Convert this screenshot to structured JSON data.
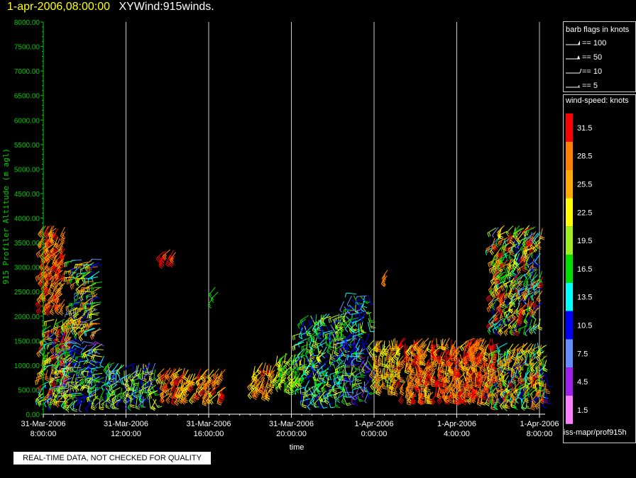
{
  "header": {
    "date": "1-apr-2006,08:00:00",
    "product": "XYWind:915winds."
  },
  "chart_data": {
    "type": "wind-barb time-height",
    "ylabel": "915 Profiler Altitude (m agl)",
    "xlabel": "time",
    "ylim": [
      0,
      8000
    ],
    "yticks": [
      "0.00",
      "500.00",
      "1000.00",
      "1500.00",
      "2000.00",
      "2500.00",
      "3000.00",
      "3500.00",
      "4000.00",
      "4500.00",
      "5000.00",
      "5500.00",
      "6000.00",
      "6500.00",
      "7000.00",
      "7500.00",
      "8000.00"
    ],
    "xticks": [
      {
        "date": "31-Mar-2006",
        "time": "8:00:00",
        "hour": 0
      },
      {
        "date": "31-Mar-2006",
        "time": "12:00:00",
        "hour": 4
      },
      {
        "date": "31-Mar-2006",
        "time": "16:00:00",
        "hour": 8
      },
      {
        "date": "31-Mar-2006",
        "time": "20:00:00",
        "hour": 12
      },
      {
        "date": "1-Apr-2006",
        "time": "0:00:00",
        "hour": 16
      },
      {
        "date": "1-Apr-2006",
        "time": "4:00:00",
        "hour": 20
      },
      {
        "date": "1-Apr-2006",
        "time": "8:00:00",
        "hour": 24
      }
    ],
    "xlim_hours": [
      0,
      24
    ],
    "grid": "vertical lines at each 4-hour tick",
    "wind_clusters": [
      {
        "t0": 0.0,
        "t1": 1.1,
        "h0": 2200,
        "h1": 3900,
        "s0": 24,
        "s1": 33,
        "dir": [
          200,
          240
        ]
      },
      {
        "t0": 0.0,
        "t1": 1.4,
        "h0": 300,
        "h1": 2000,
        "s0": 8,
        "s1": 33,
        "dir": [
          180,
          260
        ]
      },
      {
        "t0": 1.5,
        "t1": 2.9,
        "h0": 1700,
        "h1": 3200,
        "s0": 7,
        "s1": 30,
        "dir": [
          220,
          280
        ]
      },
      {
        "t0": 1.0,
        "t1": 3.0,
        "h0": 250,
        "h1": 1500,
        "s0": 4,
        "s1": 24,
        "dir": [
          180,
          300
        ]
      },
      {
        "t0": 3.0,
        "t1": 5.6,
        "h0": 300,
        "h1": 1100,
        "s0": 6,
        "s1": 24,
        "dir": [
          150,
          250
        ]
      },
      {
        "t0": 5.8,
        "t1": 6.5,
        "h0": 3200,
        "h1": 3400,
        "s0": 29,
        "s1": 33,
        "dir": [
          200,
          230
        ]
      },
      {
        "t0": 5.8,
        "t1": 8.9,
        "h0": 400,
        "h1": 1000,
        "s0": 22,
        "s1": 32,
        "dir": [
          190,
          240
        ]
      },
      {
        "t0": 8.2,
        "t1": 8.6,
        "h0": 2350,
        "h1": 2650,
        "s0": 15,
        "s1": 18,
        "dir": [
          210,
          240
        ]
      },
      {
        "t0": 10.2,
        "t1": 11.3,
        "h0": 500,
        "h1": 1100,
        "s0": 22,
        "s1": 31,
        "dir": [
          180,
          230
        ]
      },
      {
        "t0": 11.3,
        "t1": 12.6,
        "h0": 600,
        "h1": 1300,
        "s0": 16,
        "s1": 24,
        "dir": [
          170,
          240
        ]
      },
      {
        "t0": 12.5,
        "t1": 14.6,
        "h0": 300,
        "h1": 2100,
        "s0": 9,
        "s1": 22,
        "dir": [
          150,
          260
        ]
      },
      {
        "t0": 14.5,
        "t1": 15.8,
        "h0": 400,
        "h1": 2500,
        "s0": 5,
        "s1": 20,
        "dir": [
          130,
          280
        ]
      },
      {
        "t0": 16.0,
        "t1": 17.3,
        "h0": 600,
        "h1": 1600,
        "s0": 19,
        "s1": 30,
        "dir": [
          170,
          230
        ]
      },
      {
        "t0": 17.4,
        "t1": 21.9,
        "h0": 400,
        "h1": 1600,
        "s0": 23,
        "s1": 33,
        "dir": [
          160,
          230
        ]
      },
      {
        "t0": 20.7,
        "t1": 21.5,
        "h0": 1200,
        "h1": 1600,
        "s0": 27,
        "s1": 31,
        "dir": [
          200,
          250
        ]
      },
      {
        "t0": 21.8,
        "t1": 24.2,
        "h0": 1800,
        "h1": 3900,
        "s0": 8,
        "s1": 33,
        "dir": [
          190,
          250
        ]
      },
      {
        "t0": 21.7,
        "t1": 24.4,
        "h0": 300,
        "h1": 1500,
        "s0": 10,
        "s1": 31,
        "dir": [
          170,
          250
        ]
      },
      {
        "t0": 16.5,
        "t1": 16.7,
        "h0": 2700,
        "h1": 3000,
        "s0": 28,
        "s1": 30,
        "dir": [
          200,
          220
        ]
      }
    ]
  },
  "legend": {
    "barb_title": "barb flags in knots",
    "barbs": [
      "== 100",
      "== 50",
      "== 10",
      "== 5"
    ],
    "speed_title": "wind-speed: knots",
    "speeds": [
      {
        "label": "31.5",
        "color": "#ff0000"
      },
      {
        "label": "28.5",
        "color": "#ff8000"
      },
      {
        "label": "25.5",
        "color": "#ffaa00"
      },
      {
        "label": "22.5",
        "color": "#ffff00"
      },
      {
        "label": "19.5",
        "color": "#a0f020"
      },
      {
        "label": "16.5",
        "color": "#00e000"
      },
      {
        "label": "13.5",
        "color": "#00ffff"
      },
      {
        "label": "10.5",
        "color": "#0000ff"
      },
      {
        "label": "7.5",
        "color": "#6090ff"
      },
      {
        "label": "4.5",
        "color": "#a020f0"
      },
      {
        "label": "1.5",
        "color": "#ff80ff"
      }
    ]
  },
  "footer": {
    "source": "iss-mapr/prof915h",
    "quality_note": "REAL-TIME DATA, NOT CHECKED FOR QUALITY"
  },
  "colors": {
    "axis": "#00cc00",
    "grid": "#cccccc",
    "title_date": "#ffff00"
  }
}
